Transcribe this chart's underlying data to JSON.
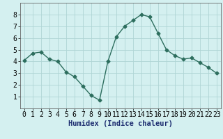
{
  "x": [
    0,
    1,
    2,
    3,
    4,
    5,
    6,
    7,
    8,
    9,
    10,
    11,
    12,
    13,
    14,
    15,
    16,
    17,
    18,
    19,
    20,
    21,
    22,
    23
  ],
  "y": [
    4.1,
    4.7,
    4.8,
    4.2,
    4.0,
    3.1,
    2.7,
    1.9,
    1.1,
    0.7,
    4.0,
    6.1,
    7.0,
    7.5,
    8.0,
    7.8,
    6.4,
    5.0,
    4.5,
    4.2,
    4.3,
    3.9,
    3.5,
    3.0
  ],
  "line_color": "#2d6e5e",
  "marker": "D",
  "marker_size": 2.5,
  "bg_color": "#d4f0f0",
  "grid_color": "#b0d5d5",
  "xlabel": "Humidex (Indice chaleur)",
  "xlabel_fontsize": 7.5,
  "tick_label_fontsize": 7,
  "ylim": [
    0,
    9
  ],
  "xlim": [
    -0.5,
    23.5
  ],
  "yticks": [
    1,
    2,
    3,
    4,
    5,
    6,
    7,
    8
  ],
  "xticks": [
    0,
    1,
    2,
    3,
    4,
    5,
    6,
    7,
    8,
    9,
    10,
    11,
    12,
    13,
    14,
    15,
    16,
    17,
    18,
    19,
    20,
    21,
    22,
    23
  ],
  "linewidth": 1.0
}
